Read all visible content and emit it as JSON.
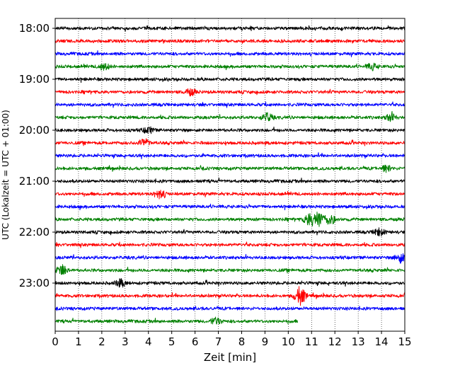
{
  "chart_data": {
    "type": "line",
    "title": "",
    "xlabel": "Zeit  [min]",
    "ylabel": "UTC (Lokalzeit = UTC + 01:00)",
    "xlim": [
      0,
      15
    ],
    "x_ticks": [
      0,
      1,
      2,
      3,
      4,
      5,
      6,
      7,
      8,
      9,
      10,
      11,
      12,
      13,
      14,
      15
    ],
    "hour_labels": [
      "18:00",
      "19:00",
      "20:00",
      "21:00",
      "22:00",
      "23:00"
    ],
    "grid": "vertical-dotted",
    "colors": [
      "#000000",
      "#ff0000",
      "#0000ff",
      "#008000"
    ],
    "traces": [
      {
        "start": "18:00",
        "color": "#000000",
        "x_end": 15
      },
      {
        "start": "18:15",
        "color": "#ff0000",
        "x_end": 15
      },
      {
        "start": "18:30",
        "color": "#0000ff",
        "x_end": 15
      },
      {
        "start": "18:45",
        "color": "#008000",
        "x_end": 15
      },
      {
        "start": "19:00",
        "color": "#000000",
        "x_end": 15
      },
      {
        "start": "19:15",
        "color": "#ff0000",
        "x_end": 15
      },
      {
        "start": "19:30",
        "color": "#0000ff",
        "x_end": 15
      },
      {
        "start": "19:45",
        "color": "#008000",
        "x_end": 15
      },
      {
        "start": "20:00",
        "color": "#000000",
        "x_end": 15
      },
      {
        "start": "20:15",
        "color": "#ff0000",
        "x_end": 15
      },
      {
        "start": "20:30",
        "color": "#0000ff",
        "x_end": 15
      },
      {
        "start": "20:45",
        "color": "#008000",
        "x_end": 15
      },
      {
        "start": "21:00",
        "color": "#000000",
        "x_end": 15
      },
      {
        "start": "21:15",
        "color": "#ff0000",
        "x_end": 15
      },
      {
        "start": "21:30",
        "color": "#0000ff",
        "x_end": 15
      },
      {
        "start": "21:45",
        "color": "#008000",
        "x_end": 15
      },
      {
        "start": "22:00",
        "color": "#000000",
        "x_end": 15
      },
      {
        "start": "22:15",
        "color": "#ff0000",
        "x_end": 15
      },
      {
        "start": "22:30",
        "color": "#0000ff",
        "x_end": 15
      },
      {
        "start": "22:45",
        "color": "#008000",
        "x_end": 15
      },
      {
        "start": "23:00",
        "color": "#000000",
        "x_end": 15
      },
      {
        "start": "23:15",
        "color": "#ff0000",
        "x_end": 15
      },
      {
        "start": "23:30",
        "color": "#0000ff",
        "x_end": 15
      },
      {
        "start": "23:45",
        "color": "#008000",
        "x_end": 10.4
      }
    ],
    "events": [
      {
        "start": "18:45",
        "x": 2.1,
        "amp": 0.35
      },
      {
        "start": "18:45",
        "x": 13.6,
        "amp": 0.3
      },
      {
        "start": "19:15",
        "x": 5.8,
        "amp": 0.3
      },
      {
        "start": "19:45",
        "x": 9.1,
        "amp": 0.4
      },
      {
        "start": "19:45",
        "x": 14.4,
        "amp": 0.35
      },
      {
        "start": "20:00",
        "x": 4.0,
        "amp": 0.3
      },
      {
        "start": "20:15",
        "x": 3.8,
        "amp": 0.4
      },
      {
        "start": "20:45",
        "x": 14.2,
        "amp": 0.3
      },
      {
        "start": "21:15",
        "x": 4.5,
        "amp": 0.45
      },
      {
        "start": "21:45",
        "x": 10.9,
        "amp": 0.6
      },
      {
        "start": "21:45",
        "x": 11.3,
        "amp": 0.8
      },
      {
        "start": "21:45",
        "x": 11.8,
        "amp": 0.5
      },
      {
        "start": "22:00",
        "x": 13.9,
        "amp": 0.35
      },
      {
        "start": "22:30",
        "x": 14.8,
        "amp": 0.5
      },
      {
        "start": "22:45",
        "x": 0.3,
        "amp": 0.55
      },
      {
        "start": "23:00",
        "x": 2.8,
        "amp": 0.35
      },
      {
        "start": "23:15",
        "x": 10.5,
        "amp": 0.9
      },
      {
        "start": "23:45",
        "x": 6.9,
        "amp": 0.35
      }
    ]
  }
}
